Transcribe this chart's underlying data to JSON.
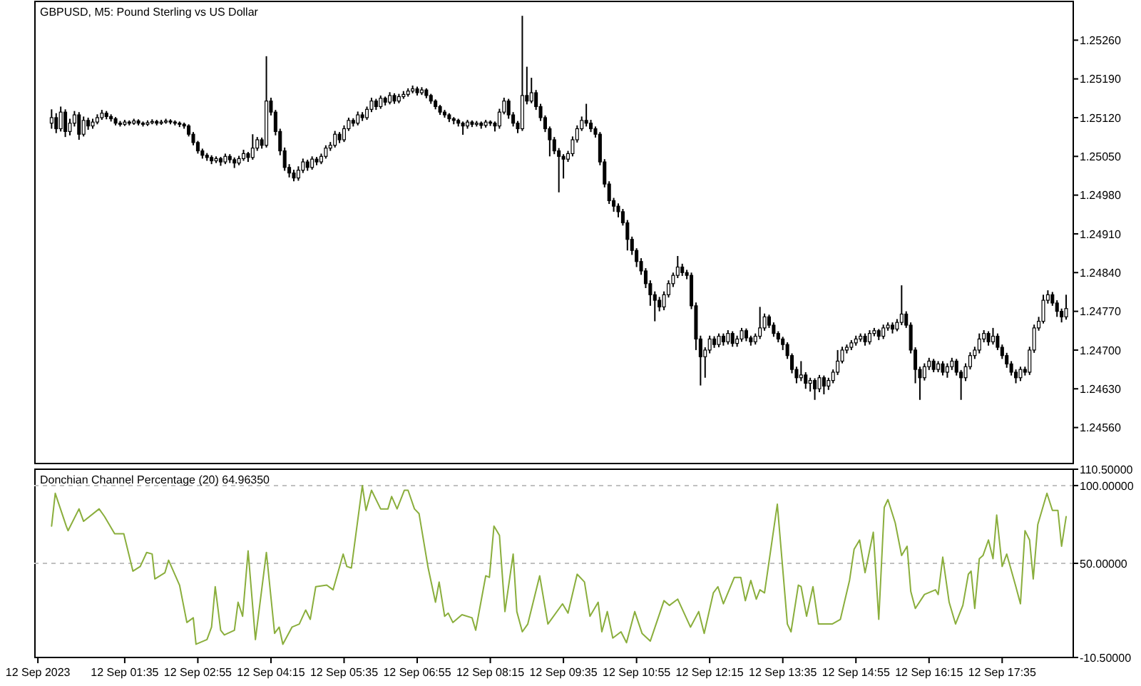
{
  "chart_data": [
    {
      "type": "candlestick",
      "title": "GBPUSD, M5:  Pound Sterling vs US Dollar",
      "tick_labels": "y",
      "xlim": [
        "2023-09-11T23:56",
        "2023-09-12T18:52"
      ],
      "ylim": [
        1.24495,
        1.2533
      ],
      "yticks": [
        {
          "value": 1.2456,
          "label": "1.24560"
        },
        {
          "value": 1.2463,
          "label": "1.24630"
        },
        {
          "value": 1.247,
          "label": "1.24700"
        },
        {
          "value": 1.2477,
          "label": "1.24770"
        },
        {
          "value": 1.2484,
          "label": "1.24840"
        },
        {
          "value": 1.2491,
          "label": "1.24910"
        },
        {
          "value": 1.2498,
          "label": "1.24980"
        },
        {
          "value": 1.2505,
          "label": "1.25050"
        },
        {
          "value": 1.2512,
          "label": "1.25120"
        },
        {
          "value": 1.2519,
          "label": "1.25190"
        },
        {
          "value": 1.2526,
          "label": "1.25260"
        }
      ],
      "x": [
        "2023-09-12T00:15",
        "2023-09-12T00:20",
        "2023-09-12T00:25",
        "2023-09-12T00:30",
        "2023-09-12T00:35",
        "2023-09-12T00:40",
        "2023-09-12T00:45",
        "2023-09-12T00:50",
        "2023-09-12T00:55",
        "2023-09-12T01:00",
        "2023-09-12T01:05",
        "2023-09-12T01:10",
        "2023-09-12T01:15",
        "2023-09-12T01:20",
        "2023-09-12T01:25",
        "2023-09-12T01:30",
        "2023-09-12T01:35",
        "2023-09-12T01:40",
        "2023-09-12T01:45",
        "2023-09-12T01:50",
        "2023-09-12T01:55",
        "2023-09-12T02:00",
        "2023-09-12T02:05",
        "2023-09-12T02:10",
        "2023-09-12T02:15",
        "2023-09-12T02:20",
        "2023-09-12T02:25",
        "2023-09-12T02:30",
        "2023-09-12T02:35",
        "2023-09-12T02:40",
        "2023-09-12T02:45",
        "2023-09-12T02:50",
        "2023-09-12T02:55",
        "2023-09-12T03:00",
        "2023-09-12T03:05",
        "2023-09-12T03:10",
        "2023-09-12T03:15",
        "2023-09-12T03:20",
        "2023-09-12T03:25",
        "2023-09-12T03:30",
        "2023-09-12T03:35",
        "2023-09-12T03:40",
        "2023-09-12T03:45",
        "2023-09-12T03:50",
        "2023-09-12T03:55",
        "2023-09-12T04:00",
        "2023-09-12T04:05",
        "2023-09-12T04:10",
        "2023-09-12T04:15",
        "2023-09-12T04:20",
        "2023-09-12T04:25",
        "2023-09-12T04:30",
        "2023-09-12T04:35",
        "2023-09-12T04:40",
        "2023-09-12T04:45",
        "2023-09-12T04:50",
        "2023-09-12T04:55",
        "2023-09-12T05:00",
        "2023-09-12T05:05",
        "2023-09-12T05:10",
        "2023-09-12T05:15",
        "2023-09-12T05:20",
        "2023-09-12T05:25",
        "2023-09-12T05:30",
        "2023-09-12T05:35",
        "2023-09-12T05:40",
        "2023-09-12T05:45",
        "2023-09-12T05:50",
        "2023-09-12T05:55",
        "2023-09-12T06:00",
        "2023-09-12T06:05",
        "2023-09-12T06:10",
        "2023-09-12T06:15",
        "2023-09-12T06:20",
        "2023-09-12T06:25",
        "2023-09-12T06:30",
        "2023-09-12T06:35",
        "2023-09-12T06:40",
        "2023-09-12T06:45",
        "2023-09-12T06:50",
        "2023-09-12T06:55",
        "2023-09-12T07:00",
        "2023-09-12T07:05",
        "2023-09-12T07:10",
        "2023-09-12T07:15",
        "2023-09-12T07:20",
        "2023-09-12T07:25",
        "2023-09-12T07:30",
        "2023-09-12T07:35",
        "2023-09-12T07:40",
        "2023-09-12T07:45",
        "2023-09-12T07:50",
        "2023-09-12T07:55",
        "2023-09-12T08:00",
        "2023-09-12T08:05",
        "2023-09-12T08:10",
        "2023-09-12T08:15",
        "2023-09-12T08:20",
        "2023-09-12T08:25",
        "2023-09-12T08:30",
        "2023-09-12T08:35",
        "2023-09-12T08:40",
        "2023-09-12T08:45",
        "2023-09-12T08:50",
        "2023-09-12T08:55",
        "2023-09-12T09:00",
        "2023-09-12T09:05",
        "2023-09-12T09:10",
        "2023-09-12T09:15",
        "2023-09-12T09:20",
        "2023-09-12T09:25",
        "2023-09-12T09:30",
        "2023-09-12T09:35",
        "2023-09-12T09:40",
        "2023-09-12T09:45",
        "2023-09-12T09:50",
        "2023-09-12T09:55",
        "2023-09-12T10:00",
        "2023-09-12T10:05",
        "2023-09-12T10:10",
        "2023-09-12T10:15",
        "2023-09-12T10:20",
        "2023-09-12T10:25",
        "2023-09-12T10:30",
        "2023-09-12T10:35",
        "2023-09-12T10:40",
        "2023-09-12T10:45",
        "2023-09-12T10:50",
        "2023-09-12T10:55",
        "2023-09-12T11:00",
        "2023-09-12T11:05",
        "2023-09-12T11:10",
        "2023-09-12T11:15",
        "2023-09-12T11:20",
        "2023-09-12T11:25",
        "2023-09-12T11:30",
        "2023-09-12T11:35",
        "2023-09-12T11:40",
        "2023-09-12T11:45",
        "2023-09-12T11:50",
        "2023-09-12T11:55",
        "2023-09-12T12:00",
        "2023-09-12T12:05",
        "2023-09-12T12:10",
        "2023-09-12T12:15",
        "2023-09-12T12:20",
        "2023-09-12T12:25",
        "2023-09-12T12:30",
        "2023-09-12T12:35",
        "2023-09-12T12:40",
        "2023-09-12T12:45",
        "2023-09-12T12:50",
        "2023-09-12T12:55",
        "2023-09-12T13:00",
        "2023-09-12T13:05",
        "2023-09-12T13:10",
        "2023-09-12T13:15",
        "2023-09-12T13:20",
        "2023-09-12T13:25",
        "2023-09-12T13:30",
        "2023-09-12T13:35",
        "2023-09-12T13:40",
        "2023-09-12T13:45",
        "2023-09-12T13:50",
        "2023-09-12T13:55",
        "2023-09-12T14:00",
        "2023-09-12T14:05",
        "2023-09-12T14:10",
        "2023-09-12T14:15",
        "2023-09-12T14:20",
        "2023-09-12T14:25",
        "2023-09-12T14:30",
        "2023-09-12T14:35",
        "2023-09-12T14:40",
        "2023-09-12T14:45",
        "2023-09-12T14:50",
        "2023-09-12T14:55",
        "2023-09-12T15:00",
        "2023-09-12T15:05",
        "2023-09-12T15:10",
        "2023-09-12T15:15",
        "2023-09-12T15:20",
        "2023-09-12T15:25",
        "2023-09-12T15:30",
        "2023-09-12T15:35",
        "2023-09-12T15:40",
        "2023-09-12T15:45",
        "2023-09-12T15:50",
        "2023-09-12T15:55",
        "2023-09-12T16:00",
        "2023-09-12T16:05",
        "2023-09-12T16:10",
        "2023-09-12T16:15",
        "2023-09-12T16:20",
        "2023-09-12T16:25",
        "2023-09-12T16:30",
        "2023-09-12T16:35",
        "2023-09-12T16:40",
        "2023-09-12T16:45",
        "2023-09-12T16:50",
        "2023-09-12T16:55",
        "2023-09-12T17:00",
        "2023-09-12T17:05",
        "2023-09-12T17:10",
        "2023-09-12T17:15",
        "2023-09-12T17:20",
        "2023-09-12T17:25",
        "2023-09-12T17:30",
        "2023-09-12T17:35",
        "2023-09-12T17:40",
        "2023-09-12T17:45",
        "2023-09-12T17:50",
        "2023-09-12T17:55",
        "2023-09-12T18:00",
        "2023-09-12T18:05",
        "2023-09-12T18:10",
        "2023-09-12T18:15",
        "2023-09-12T18:20",
        "2023-09-12T18:25",
        "2023-09-12T18:30",
        "2023-09-12T18:35",
        "2023-09-12T18:40",
        "2023-09-12T18:45"
      ],
      "ohlc": [
        [
          1.2511,
          1.25135,
          1.251,
          1.2512
        ],
        [
          1.2512,
          1.25128,
          1.25092,
          1.251
        ],
        [
          1.251,
          1.2514,
          1.25095,
          1.2513
        ],
        [
          1.2513,
          1.25135,
          1.25085,
          1.25095
        ],
        [
          1.25095,
          1.25118,
          1.25088,
          1.2511
        ],
        [
          1.2511,
          1.25132,
          1.25104,
          1.25125
        ],
        [
          1.25125,
          1.2513,
          1.2508,
          1.2509
        ],
        [
          1.2509,
          1.25122,
          1.25086,
          1.25115
        ],
        [
          1.25115,
          1.2512,
          1.25098,
          1.25105
        ],
        [
          1.25105,
          1.25118,
          1.251,
          1.25112
        ],
        [
          1.25112,
          1.25126,
          1.25108,
          1.2512
        ],
        [
          1.2512,
          1.25134,
          1.25116,
          1.25128
        ],
        [
          1.25128,
          1.25132,
          1.25117,
          1.25122
        ],
        [
          1.25122,
          1.25126,
          1.25113,
          1.25118
        ],
        [
          1.25118,
          1.25121,
          1.25106,
          1.2511
        ],
        [
          1.2511,
          1.25114,
          1.25104,
          1.25108
        ],
        [
          1.25108,
          1.25116,
          1.25105,
          1.25112
        ],
        [
          1.25112,
          1.25115,
          1.25106,
          1.2511
        ],
        [
          1.2511,
          1.25118,
          1.25107,
          1.25114
        ],
        [
          1.25114,
          1.25117,
          1.25106,
          1.2511
        ],
        [
          1.2511,
          1.25113,
          1.25104,
          1.25108
        ],
        [
          1.25108,
          1.25115,
          1.25105,
          1.25111
        ],
        [
          1.25111,
          1.25117,
          1.25108,
          1.25113
        ],
        [
          1.25113,
          1.25116,
          1.25106,
          1.2511
        ],
        [
          1.2511,
          1.25116,
          1.25107,
          1.25112
        ],
        [
          1.25112,
          1.25118,
          1.25109,
          1.25114
        ],
        [
          1.25114,
          1.25117,
          1.25108,
          1.25112
        ],
        [
          1.25112,
          1.25115,
          1.25106,
          1.2511
        ],
        [
          1.2511,
          1.25113,
          1.25103,
          1.25108
        ],
        [
          1.25108,
          1.25111,
          1.251,
          1.25105
        ],
        [
          1.25105,
          1.25108,
          1.25086,
          1.2509
        ],
        [
          1.2509,
          1.25094,
          1.2507,
          1.25075
        ],
        [
          1.25075,
          1.25078,
          1.25055,
          1.2506
        ],
        [
          1.2506,
          1.25064,
          1.25046,
          1.25052
        ],
        [
          1.25052,
          1.25056,
          1.25042,
          1.25048
        ],
        [
          1.25048,
          1.25052,
          1.25036,
          1.25042
        ],
        [
          1.25042,
          1.2505,
          1.25038,
          1.25046
        ],
        [
          1.25046,
          1.25049,
          1.25033,
          1.2504
        ],
        [
          1.2504,
          1.25055,
          1.25036,
          1.2505
        ],
        [
          1.2505,
          1.25054,
          1.25038,
          1.25044
        ],
        [
          1.25044,
          1.25048,
          1.25029,
          1.25038
        ],
        [
          1.25038,
          1.25051,
          1.25034,
          1.25046
        ],
        [
          1.25046,
          1.25062,
          1.25042,
          1.25055
        ],
        [
          1.25055,
          1.25058,
          1.2504,
          1.25048
        ],
        [
          1.25048,
          1.2509,
          1.25044,
          1.25065
        ],
        [
          1.25065,
          1.25085,
          1.2506,
          1.2508
        ],
        [
          1.2508,
          1.25084,
          1.25064,
          1.2507
        ],
        [
          1.2507,
          1.25231,
          1.25066,
          1.2515
        ],
        [
          1.2515,
          1.25156,
          1.25124,
          1.2513
        ],
        [
          1.2513,
          1.25134,
          1.25088,
          1.25095
        ],
        [
          1.25095,
          1.251,
          1.25052,
          1.2506
        ],
        [
          1.2506,
          1.25066,
          1.25024,
          1.2503
        ],
        [
          1.2503,
          1.25036,
          1.25012,
          1.2502
        ],
        [
          1.2502,
          1.25026,
          1.25005,
          1.25011
        ],
        [
          1.25011,
          1.25032,
          1.25006,
          1.25025
        ],
        [
          1.25025,
          1.25046,
          1.2502,
          1.2504
        ],
        [
          1.2504,
          1.25044,
          1.25024,
          1.2503
        ],
        [
          1.2503,
          1.2505,
          1.25026,
          1.25045
        ],
        [
          1.25045,
          1.25049,
          1.25034,
          1.2504
        ],
        [
          1.2504,
          1.25055,
          1.25036,
          1.2505
        ],
        [
          1.2505,
          1.2507,
          1.25046,
          1.25065
        ],
        [
          1.25065,
          1.25076,
          1.2506,
          1.2507
        ],
        [
          1.2507,
          1.25096,
          1.25066,
          1.2509
        ],
        [
          1.2509,
          1.25094,
          1.25074,
          1.2508
        ],
        [
          1.2508,
          1.25106,
          1.25076,
          1.251
        ],
        [
          1.251,
          1.2512,
          1.25096,
          1.25115
        ],
        [
          1.25115,
          1.25119,
          1.25104,
          1.2511
        ],
        [
          1.2511,
          1.25131,
          1.25106,
          1.25125
        ],
        [
          1.25125,
          1.2513,
          1.25114,
          1.2512
        ],
        [
          1.2512,
          1.2514,
          1.25116,
          1.25135
        ],
        [
          1.25135,
          1.25156,
          1.2513,
          1.2515
        ],
        [
          1.2515,
          1.25154,
          1.25134,
          1.2514
        ],
        [
          1.2514,
          1.2516,
          1.25136,
          1.25155
        ],
        [
          1.25155,
          1.25158,
          1.25142,
          1.25148
        ],
        [
          1.25148,
          1.25166,
          1.25144,
          1.2516
        ],
        [
          1.2516,
          1.25164,
          1.25145,
          1.2515
        ],
        [
          1.2515,
          1.25163,
          1.25146,
          1.25158
        ],
        [
          1.25158,
          1.25168,
          1.25154,
          1.25162
        ],
        [
          1.25162,
          1.25173,
          1.25158,
          1.25168
        ],
        [
          1.25168,
          1.25178,
          1.25164,
          1.25172
        ],
        [
          1.25172,
          1.25176,
          1.2516,
          1.25165
        ],
        [
          1.25165,
          1.25175,
          1.25161,
          1.2517
        ],
        [
          1.2517,
          1.25173,
          1.25155,
          1.2516
        ],
        [
          1.2516,
          1.25163,
          1.25145,
          1.2515
        ],
        [
          1.2515,
          1.25153,
          1.25135,
          1.2514
        ],
        [
          1.2514,
          1.25143,
          1.25125,
          1.2513
        ],
        [
          1.2513,
          1.25134,
          1.2512,
          1.25125
        ],
        [
          1.25125,
          1.25128,
          1.25112,
          1.25118
        ],
        [
          1.25118,
          1.25121,
          1.25108,
          1.25115
        ],
        [
          1.25115,
          1.25118,
          1.25104,
          1.2511
        ],
        [
          1.2511,
          1.25113,
          1.25089,
          1.25105
        ],
        [
          1.25105,
          1.25116,
          1.251,
          1.25112
        ],
        [
          1.25112,
          1.25115,
          1.25103,
          1.25108
        ],
        [
          1.25108,
          1.25114,
          1.25104,
          1.2511
        ],
        [
          1.2511,
          1.25113,
          1.251,
          1.25106
        ],
        [
          1.25106,
          1.25116,
          1.25102,
          1.25112
        ],
        [
          1.25112,
          1.25115,
          1.25105,
          1.2511
        ],
        [
          1.2511,
          1.25113,
          1.25095,
          1.25105
        ],
        [
          1.25105,
          1.25136,
          1.251,
          1.2513
        ],
        [
          1.2513,
          1.25156,
          1.25126,
          1.2515
        ],
        [
          1.2515,
          1.25154,
          1.25118,
          1.25125
        ],
        [
          1.25125,
          1.2513,
          1.25104,
          1.2511
        ],
        [
          1.2511,
          1.25114,
          1.25092,
          1.251
        ],
        [
          1.251,
          1.25304,
          1.25096,
          1.2516
        ],
        [
          1.2516,
          1.25212,
          1.25144,
          1.2515
        ],
        [
          1.2515,
          1.25192,
          1.25146,
          1.25165
        ],
        [
          1.25165,
          1.2517,
          1.25134,
          1.2514
        ],
        [
          1.2514,
          1.25145,
          1.25114,
          1.2512
        ],
        [
          1.2512,
          1.25124,
          1.25094,
          1.251
        ],
        [
          1.251,
          1.25104,
          1.2505,
          1.2508
        ],
        [
          1.2508,
          1.25085,
          1.25054,
          1.2506
        ],
        [
          1.2506,
          1.25065,
          1.24985,
          1.2505
        ],
        [
          1.2505,
          1.25054,
          1.2501,
          1.25045
        ],
        [
          1.25045,
          1.2506,
          1.2504,
          1.25055
        ],
        [
          1.25055,
          1.25086,
          1.2505,
          1.2508
        ],
        [
          1.2508,
          1.25106,
          1.25075,
          1.251
        ],
        [
          1.251,
          1.25122,
          1.25096,
          1.25115
        ],
        [
          1.25115,
          1.25145,
          1.25104,
          1.2511
        ],
        [
          1.2511,
          1.25116,
          1.25094,
          1.251
        ],
        [
          1.251,
          1.25104,
          1.25084,
          1.2509
        ],
        [
          1.2509,
          1.25094,
          1.25034,
          1.2504
        ],
        [
          1.2504,
          1.25045,
          1.24994,
          1.25
        ],
        [
          1.25,
          1.25005,
          1.24964,
          1.2497
        ],
        [
          1.2497,
          1.24975,
          1.2495,
          1.2496
        ],
        [
          1.2496,
          1.24965,
          1.2494,
          1.2495
        ],
        [
          1.2495,
          1.24955,
          1.24925,
          1.2493
        ],
        [
          1.2493,
          1.24935,
          1.2488,
          1.249
        ],
        [
          1.249,
          1.24905,
          1.24872,
          1.2488
        ],
        [
          1.2488,
          1.24884,
          1.2485,
          1.2486
        ],
        [
          1.2486,
          1.24866,
          1.24836,
          1.24843
        ],
        [
          1.24843,
          1.24848,
          1.24812,
          1.2482
        ],
        [
          1.2482,
          1.24826,
          1.2478,
          1.248
        ],
        [
          1.248,
          1.24806,
          1.24752,
          1.2479
        ],
        [
          1.2479,
          1.24796,
          1.2477,
          1.24778
        ],
        [
          1.24778,
          1.24806,
          1.24772,
          1.248
        ],
        [
          1.248,
          1.24826,
          1.24795,
          1.2482
        ],
        [
          1.2482,
          1.2484,
          1.24814,
          1.24835
        ],
        [
          1.24835,
          1.2487,
          1.2483,
          1.2485
        ],
        [
          1.2485,
          1.24856,
          1.24834,
          1.2484
        ],
        [
          1.2484,
          1.24845,
          1.24828,
          1.24835
        ],
        [
          1.24835,
          1.2484,
          1.24774,
          1.2478
        ],
        [
          1.2478,
          1.24786,
          1.247,
          1.2472
        ],
        [
          1.2472,
          1.24726,
          1.24636,
          1.24688
        ],
        [
          1.24688,
          1.24705,
          1.2465,
          1.247
        ],
        [
          1.247,
          1.24726,
          1.24694,
          1.2472
        ],
        [
          1.2472,
          1.24725,
          1.24704,
          1.2471
        ],
        [
          1.2471,
          1.2473,
          1.24705,
          1.24725
        ],
        [
          1.24725,
          1.2473,
          1.24708,
          1.24715
        ],
        [
          1.24715,
          1.24736,
          1.2471,
          1.2473
        ],
        [
          1.2473,
          1.24734,
          1.24706,
          1.24712
        ],
        [
          1.24712,
          1.24726,
          1.24706,
          1.2472
        ],
        [
          1.2472,
          1.2474,
          1.24715,
          1.24735
        ],
        [
          1.24735,
          1.24739,
          1.24716,
          1.24722
        ],
        [
          1.24722,
          1.24726,
          1.24708,
          1.24715
        ],
        [
          1.24715,
          1.2473,
          1.2471,
          1.24725
        ],
        [
          1.24725,
          1.24778,
          1.2472,
          1.2474
        ],
        [
          1.2474,
          1.24766,
          1.24735,
          1.2476
        ],
        [
          1.2476,
          1.24764,
          1.2474,
          1.24745
        ],
        [
          1.24745,
          1.2475,
          1.24724,
          1.2473
        ],
        [
          1.2473,
          1.24734,
          1.24714,
          1.2472
        ],
        [
          1.2472,
          1.24724,
          1.247,
          1.2471
        ],
        [
          1.2471,
          1.24714,
          1.24684,
          1.2469
        ],
        [
          1.2469,
          1.24694,
          1.24658,
          1.24665
        ],
        [
          1.24665,
          1.2467,
          1.2464,
          1.2465
        ],
        [
          1.2465,
          1.2468,
          1.24644,
          1.24655
        ],
        [
          1.24655,
          1.2466,
          1.2463,
          1.2464
        ],
        [
          1.2464,
          1.2465,
          1.24625,
          1.24645
        ],
        [
          1.24645,
          1.24649,
          1.2461,
          1.2463
        ],
        [
          1.2463,
          1.24655,
          1.24624,
          1.2465
        ],
        [
          1.2465,
          1.24654,
          1.2462,
          1.24635
        ],
        [
          1.24635,
          1.2465,
          1.24628,
          1.24645
        ],
        [
          1.24645,
          1.24665,
          1.2464,
          1.2466
        ],
        [
          1.2466,
          1.247,
          1.24655,
          1.2468
        ],
        [
          1.2468,
          1.24706,
          1.24676,
          1.247
        ],
        [
          1.247,
          1.2471,
          1.24694,
          1.24705
        ],
        [
          1.24705,
          1.24718,
          1.247,
          1.24713
        ],
        [
          1.24713,
          1.24726,
          1.24708,
          1.2472
        ],
        [
          1.2472,
          1.2473,
          1.24715,
          1.24725
        ],
        [
          1.24725,
          1.2473,
          1.24708,
          1.24715
        ],
        [
          1.24715,
          1.24736,
          1.2471,
          1.2473
        ],
        [
          1.2473,
          1.2474,
          1.24725,
          1.24735
        ],
        [
          1.24735,
          1.24738,
          1.24718,
          1.24725
        ],
        [
          1.24725,
          1.24746,
          1.2472,
          1.2474
        ],
        [
          1.2474,
          1.2475,
          1.24735,
          1.24745
        ],
        [
          1.24745,
          1.2475,
          1.2473,
          1.24738
        ],
        [
          1.24738,
          1.24756,
          1.24734,
          1.2475
        ],
        [
          1.2475,
          1.24817,
          1.24745,
          1.24765
        ],
        [
          1.24765,
          1.2477,
          1.2474,
          1.24745
        ],
        [
          1.24745,
          1.2475,
          1.24694,
          1.247
        ],
        [
          1.247,
          1.24705,
          1.2464,
          1.24665
        ],
        [
          1.24665,
          1.2467,
          1.2461,
          1.2465
        ],
        [
          1.2465,
          1.24676,
          1.24645,
          1.2467
        ],
        [
          1.2467,
          1.24686,
          1.24664,
          1.2468
        ],
        [
          1.2468,
          1.24684,
          1.2466,
          1.24665
        ],
        [
          1.24665,
          1.2468,
          1.2466,
          1.24675
        ],
        [
          1.24675,
          1.2468,
          1.24654,
          1.2466
        ],
        [
          1.2466,
          1.24676,
          1.2465,
          1.2467
        ],
        [
          1.2467,
          1.24686,
          1.24664,
          1.2468
        ],
        [
          1.2468,
          1.24684,
          1.24654,
          1.2466
        ],
        [
          1.2466,
          1.24664,
          1.2461,
          1.2465
        ],
        [
          1.2465,
          1.24676,
          1.24644,
          1.2467
        ],
        [
          1.2467,
          1.24696,
          1.24665,
          1.2469
        ],
        [
          1.2469,
          1.24706,
          1.24684,
          1.247
        ],
        [
          1.247,
          1.2473,
          1.24694,
          1.2472
        ],
        [
          1.2472,
          1.24736,
          1.24714,
          1.2473
        ],
        [
          1.2473,
          1.24734,
          1.24708,
          1.24715
        ],
        [
          1.24715,
          1.2474,
          1.2471,
          1.24725
        ],
        [
          1.24725,
          1.2473,
          1.247,
          1.24705
        ],
        [
          1.24705,
          1.2471,
          1.24684,
          1.2469
        ],
        [
          1.2469,
          1.24695,
          1.24668,
          1.24675
        ],
        [
          1.24675,
          1.2468,
          1.24654,
          1.2466
        ],
        [
          1.2466,
          1.24665,
          1.2464,
          1.2465
        ],
        [
          1.2465,
          1.2467,
          1.24644,
          1.24665
        ],
        [
          1.24665,
          1.2467,
          1.24654,
          1.2466
        ],
        [
          1.2466,
          1.24706,
          1.24655,
          1.247
        ],
        [
          1.247,
          1.24746,
          1.24695,
          1.2474
        ],
        [
          1.2474,
          1.2476,
          1.24735,
          1.24752
        ],
        [
          1.24752,
          1.248,
          1.24748,
          1.2479
        ],
        [
          1.2479,
          1.24808,
          1.24784,
          1.248
        ],
        [
          1.248,
          1.24805,
          1.2478,
          1.24785
        ],
        [
          1.24785,
          1.2479,
          1.2476,
          1.2477
        ],
        [
          1.2477,
          1.24775,
          1.2475,
          1.2476
        ],
        [
          1.2476,
          1.248,
          1.24755,
          1.24775
        ]
      ]
    },
    {
      "type": "line",
      "title": "Donchian Channel Percentage (20) 64.96350",
      "xlim": [
        "2023-09-11T23:56",
        "2023-09-12T18:52"
      ],
      "ylim": [
        -10.5,
        110.5
      ],
      "yticks": [
        {
          "value": -10.5,
          "label": "-10.50000"
        },
        {
          "value": 50,
          "label": "50.00000"
        },
        {
          "value": 100,
          "label": "100.00000"
        },
        {
          "value": 110.5,
          "label": "110.50000"
        }
      ],
      "xticks": [
        {
          "value": "2023-09-12T00:00",
          "label": "12 Sep 2023"
        },
        {
          "value": "2023-09-12T01:35",
          "label": "12 Sep 01:35"
        },
        {
          "value": "2023-09-12T02:55",
          "label": "12 Sep 02:55"
        },
        {
          "value": "2023-09-12T04:15",
          "label": "12 Sep 04:15"
        },
        {
          "value": "2023-09-12T05:35",
          "label": "12 Sep 05:35"
        },
        {
          "value": "2023-09-12T06:55",
          "label": "12 Sep 06:55"
        },
        {
          "value": "2023-09-12T08:15",
          "label": "12 Sep 08:15"
        },
        {
          "value": "2023-09-12T09:35",
          "label": "12 Sep 09:35"
        },
        {
          "value": "2023-09-12T10:55",
          "label": "12 Sep 10:55"
        },
        {
          "value": "2023-09-12T12:15",
          "label": "12 Sep 12:15"
        },
        {
          "value": "2023-09-12T13:35",
          "label": "12 Sep 13:35"
        },
        {
          "value": "2023-09-12T14:55",
          "label": "12 Sep 14:55"
        },
        {
          "value": "2023-09-12T16:15",
          "label": "12 Sep 16:15"
        },
        {
          "value": "2023-09-12T17:35",
          "label": "12 Sep 17:35"
        }
      ],
      "ref_lines": [
        {
          "axis": "y",
          "value": 100,
          "color": "#c0c0c0",
          "line_style": "dashed"
        },
        {
          "axis": "y",
          "value": 50,
          "color": "#c0c0c0",
          "line_style": "dashed"
        }
      ],
      "series": [
        {
          "color": "#8aae3c",
          "x": [
            "2023-09-12T00:15",
            "2023-09-12T00:19",
            "2023-09-12T00:31",
            "2023-09-12T00:33",
            "2023-09-12T00:45",
            "2023-09-12T00:50",
            "2023-09-12T01:07",
            "2023-09-12T01:13",
            "2023-09-12T01:24",
            "2023-09-12T01:34",
            "2023-09-12T01:44",
            "2023-09-12T01:52",
            "2023-09-12T01:59",
            "2023-09-12T02:05",
            "2023-09-12T02:08",
            "2023-09-12T02:19",
            "2023-09-12T02:23",
            "2023-09-12T02:35",
            "2023-09-12T02:43",
            "2023-09-12T02:50",
            "2023-09-12T02:53",
            "2023-09-12T03:05",
            "2023-09-12T03:10",
            "2023-09-12T03:14",
            "2023-09-12T03:20",
            "2023-09-12T03:24",
            "2023-09-12T03:35",
            "2023-09-12T03:39",
            "2023-09-12T03:44",
            "2023-09-12T03:50",
            "2023-09-12T03:58",
            "2023-09-12T04:10",
            "2023-09-12T04:19",
            "2023-09-12T04:24",
            "2023-09-12T04:28",
            "2023-09-12T04:38",
            "2023-09-12T04:46",
            "2023-09-12T04:53",
            "2023-09-12T04:58",
            "2023-09-12T05:04",
            "2023-09-12T05:16",
            "2023-09-12T05:23",
            "2023-09-12T05:34",
            "2023-09-12T05:38",
            "2023-09-12T05:43",
            "2023-09-12T05:55",
            "2023-09-12T05:59",
            "2023-09-12T06:05",
            "2023-09-12T06:15",
            "2023-09-12T06:23",
            "2023-09-12T06:27",
            "2023-09-12T06:33",
            "2023-09-12T06:41",
            "2023-09-12T06:45",
            "2023-09-12T06:52",
            "2023-09-12T06:57",
            "2023-09-12T07:07",
            "2023-09-12T07:15",
            "2023-09-12T07:19",
            "2023-09-12T07:25",
            "2023-09-12T07:29",
            "2023-09-12T07:34",
            "2023-09-12T07:44",
            "2023-09-12T07:55",
            "2023-09-12T07:59",
            "2023-09-12T08:10",
            "2023-09-12T08:14",
            "2023-09-12T08:19",
            "2023-09-12T08:25",
            "2023-09-12T08:31",
            "2023-09-12T08:40",
            "2023-09-12T08:44",
            "2023-09-12T08:50",
            "2023-09-12T08:56",
            "2023-09-12T09:09",
            "2023-09-12T09:18",
            "2023-09-12T09:34",
            "2023-09-12T09:40",
            "2023-09-12T09:50",
            "2023-09-12T09:58",
            "2023-09-12T10:04",
            "2023-09-12T10:13",
            "2023-09-12T10:17",
            "2023-09-12T10:23",
            "2023-09-12T10:29",
            "2023-09-12T10:38",
            "2023-09-12T10:44",
            "2023-09-12T10:53",
            "2023-09-12T11:01",
            "2023-09-12T11:10",
            "2023-09-12T11:25",
            "2023-09-12T11:31",
            "2023-09-12T11:40",
            "2023-09-12T11:54",
            "2023-09-12T12:03",
            "2023-09-12T12:09",
            "2023-09-12T12:19",
            "2023-09-12T12:24",
            "2023-09-12T12:30",
            "2023-09-12T12:42",
            "2023-09-12T12:49",
            "2023-09-12T12:54",
            "2023-09-12T13:00",
            "2023-09-12T13:06",
            "2023-09-12T13:10",
            "2023-09-12T13:15",
            "2023-09-12T13:29",
            "2023-09-12T13:34",
            "2023-09-12T13:40",
            "2023-09-12T13:44",
            "2023-09-12T13:52",
            "2023-09-12T13:55",
            "2023-09-12T14:01",
            "2023-09-12T14:08",
            "2023-09-12T14:14",
            "2023-09-12T14:22",
            "2023-09-12T14:29",
            "2023-09-12T14:38",
            "2023-09-12T14:48",
            "2023-09-12T14:53",
            "2023-09-12T14:59",
            "2023-09-12T15:05",
            "2023-09-12T15:14",
            "2023-09-12T15:20",
            "2023-09-12T15:26",
            "2023-09-12T15:30",
            "2023-09-12T15:38",
            "2023-09-12T15:45",
            "2023-09-12T15:51",
            "2023-09-12T15:55",
            "2023-09-12T16:00",
            "2023-09-12T16:10",
            "2023-09-12T16:22",
            "2023-09-12T16:25",
            "2023-09-12T16:30",
            "2023-09-12T16:37",
            "2023-09-12T16:44",
            "2023-09-12T16:52",
            "2023-09-12T16:58",
            "2023-09-12T17:01",
            "2023-09-12T17:05",
            "2023-09-12T17:10",
            "2023-09-12T17:14",
            "2023-09-12T17:20",
            "2023-09-12T17:25",
            "2023-09-12T17:29",
            "2023-09-12T17:35",
            "2023-09-12T17:40",
            "2023-09-12T17:50",
            "2023-09-12T17:55",
            "2023-09-12T18:00",
            "2023-09-12T18:05",
            "2023-09-12T18:09",
            "2023-09-12T18:14",
            "2023-09-12T18:24",
            "2023-09-12T18:30",
            "2023-09-12T18:36",
            "2023-09-12T18:40",
            "2023-09-12T18:45"
          ],
          "values": [
            74,
            95,
            74,
            71,
            85,
            77,
            85,
            80,
            69,
            69,
            45,
            48,
            57,
            56,
            40,
            44,
            52,
            36,
            12,
            15,
            -2,
            1,
            9,
            35,
            7,
            4,
            7,
            25,
            16,
            58,
            1,
            57,
            5,
            9,
            -2,
            9,
            11,
            20,
            14,
            35,
            36,
            33,
            56,
            48,
            47,
            100,
            84,
            97,
            85,
            85,
            93,
            85,
            97,
            97,
            85,
            82,
            47,
            25,
            38,
            16,
            18,
            12,
            17,
            15,
            7,
            42,
            41,
            74,
            68,
            19,
            56,
            19,
            6,
            11,
            42,
            11,
            24,
            18,
            43,
            38,
            16,
            25,
            6,
            19,
            2,
            6,
            -1,
            19,
            5,
            0,
            26,
            23,
            27,
            9,
            19,
            5,
            31,
            35,
            24,
            41,
            41,
            26,
            39,
            27,
            33,
            31,
            88,
            53,
            11,
            6,
            36,
            35,
            16,
            35,
            11,
            11,
            11,
            14,
            39,
            59,
            65,
            44,
            70,
            14,
            86,
            91,
            76,
            55,
            61,
            32,
            21,
            30,
            33,
            30,
            54,
            25,
            11,
            23,
            43,
            45,
            21,
            53,
            55,
            65,
            53,
            81,
            48,
            56,
            35,
            24,
            71,
            65,
            40,
            75,
            95,
            84,
            84,
            61,
            80
          ]
        }
      ]
    }
  ]
}
